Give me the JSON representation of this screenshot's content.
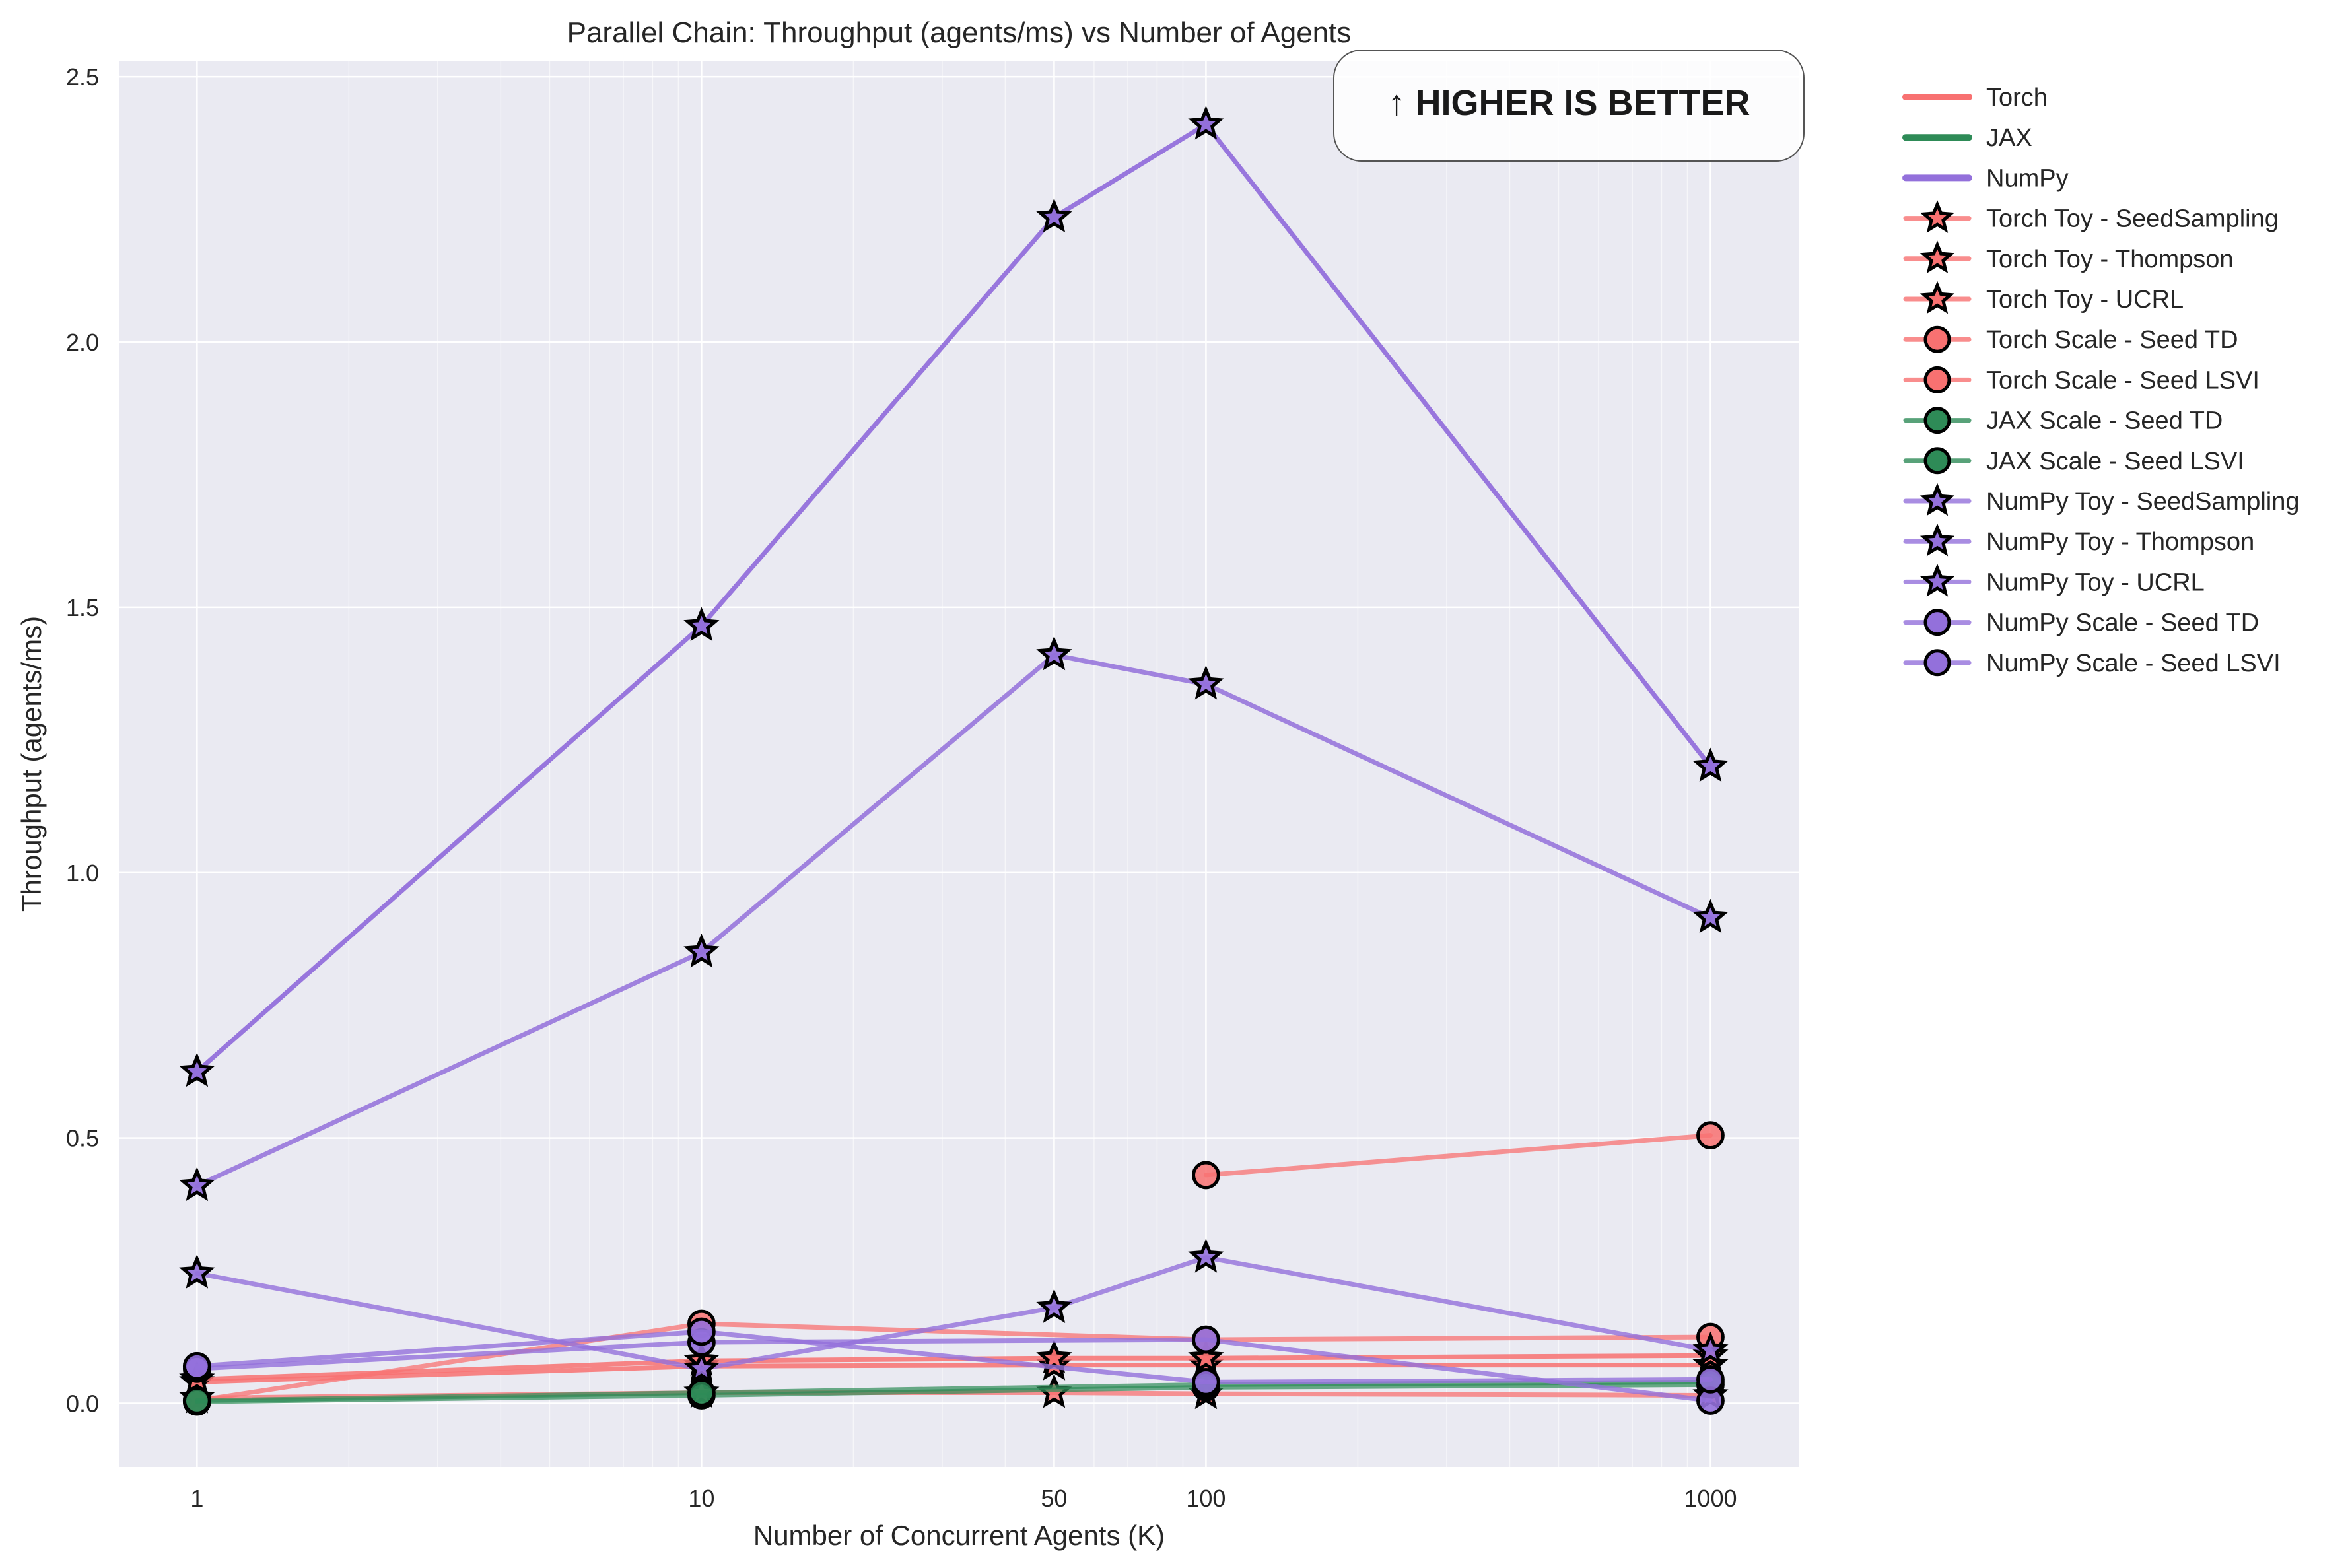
{
  "chart_data": {
    "type": "line",
    "title": "Parallel Chain: Throughput (agents/ms) vs Number of Agents",
    "xlabel": "Number of Concurrent Agents (K)",
    "ylabel": "Throughput (agents/ms)",
    "x_scale": "log",
    "xlim": [
      0.7,
      1500
    ],
    "ylim": [
      -0.12,
      2.53
    ],
    "x_ticks": [
      1,
      10,
      50,
      100,
      1000
    ],
    "x_tick_labels": [
      "1",
      "10",
      "50",
      "100",
      "1000"
    ],
    "y_ticks": [
      0.0,
      0.5,
      1.0,
      1.5,
      2.0,
      2.5
    ],
    "y_tick_labels": [
      "0.0",
      "0.5",
      "1.0",
      "1.5",
      "2.0",
      "2.5"
    ],
    "grid": true,
    "legend_position": "outside right",
    "annotation": "↑ HIGHER IS BETTER",
    "colors": {
      "torch": "#f87171",
      "jax": "#2e8b57",
      "numpy": "#9370db",
      "background": "#eaeaf2",
      "grid": "#ffffff"
    },
    "legend": [
      {
        "label": "Torch",
        "color": "#f87171",
        "marker": "none"
      },
      {
        "label": "JAX",
        "color": "#2e8b57",
        "marker": "none"
      },
      {
        "label": "NumPy",
        "color": "#9370db",
        "marker": "none"
      },
      {
        "label": "Torch Toy - SeedSampling",
        "color": "#f87171",
        "marker": "star"
      },
      {
        "label": "Torch Toy - Thompson",
        "color": "#f87171",
        "marker": "star"
      },
      {
        "label": "Torch Toy - UCRL",
        "color": "#f87171",
        "marker": "star"
      },
      {
        "label": "Torch Scale - Seed TD",
        "color": "#f87171",
        "marker": "circle"
      },
      {
        "label": "Torch Scale - Seed LSVI",
        "color": "#f87171",
        "marker": "circle"
      },
      {
        "label": "JAX Scale - Seed TD",
        "color": "#2e8b57",
        "marker": "circle"
      },
      {
        "label": "JAX Scale - Seed LSVI",
        "color": "#2e8b57",
        "marker": "circle"
      },
      {
        "label": "NumPy Toy - SeedSampling",
        "color": "#9370db",
        "marker": "star"
      },
      {
        "label": "NumPy Toy - Thompson",
        "color": "#9370db",
        "marker": "star"
      },
      {
        "label": "NumPy Toy - UCRL",
        "color": "#9370db",
        "marker": "star"
      },
      {
        "label": "NumPy Scale - Seed TD",
        "color": "#9370db",
        "marker": "circle"
      },
      {
        "label": "NumPy Scale - Seed LSVI",
        "color": "#9370db",
        "marker": "circle"
      }
    ],
    "series": [
      {
        "name": "Torch Toy - SeedSampling",
        "color": "#f87171",
        "marker": "star",
        "alpha": 0.75,
        "x": [
          1,
          10,
          50,
          100,
          1000
        ],
        "y": [
          0.01,
          0.02,
          0.02,
          0.018,
          0.015
        ]
      },
      {
        "name": "Torch Toy - Thompson",
        "color": "#f87171",
        "marker": "star",
        "alpha": 0.85,
        "x": [
          1,
          10,
          50,
          100,
          1000
        ],
        "y": [
          0.04,
          0.07,
          0.072,
          0.072,
          0.072
        ]
      },
      {
        "name": "Torch Toy - UCRL",
        "color": "#f87171",
        "marker": "star",
        "alpha": 0.85,
        "x": [
          1,
          10,
          50,
          100,
          1000
        ],
        "y": [
          0.045,
          0.08,
          0.085,
          0.085,
          0.09
        ]
      },
      {
        "name": "Torch Scale - Seed TD",
        "color": "#f87171",
        "marker": "circle",
        "alpha": 0.75,
        "x": [
          100,
          1000
        ],
        "y": [
          0.43,
          0.505
        ]
      },
      {
        "name": "Torch Scale - Seed LSVI",
        "color": "#f87171",
        "marker": "circle",
        "alpha": 0.75,
        "x": [
          1,
          10,
          100,
          1000
        ],
        "y": [
          0.005,
          0.15,
          0.12,
          0.125
        ]
      },
      {
        "name": "JAX Scale - Seed TD",
        "color": "#2e8b57",
        "marker": "circle",
        "alpha": 0.7,
        "x": [
          1,
          10,
          100,
          1000
        ],
        "y": [
          0.003,
          0.015,
          0.03,
          0.035
        ]
      },
      {
        "name": "JAX Scale - Seed LSVI",
        "color": "#2e8b57",
        "marker": "circle",
        "alpha": 0.7,
        "x": [
          1,
          10,
          100,
          1000
        ],
        "y": [
          0.005,
          0.02,
          0.035,
          0.04
        ]
      },
      {
        "name": "NumPy Toy - SeedSampling",
        "color": "#9370db",
        "marker": "star",
        "alpha": 0.8,
        "x": [
          1,
          10,
          50,
          100,
          1000
        ],
        "y": [
          0.245,
          0.065,
          0.18,
          0.275,
          0.1
        ]
      },
      {
        "name": "NumPy Toy - Thompson",
        "color": "#9370db",
        "marker": "star",
        "alpha": 0.85,
        "x": [
          1,
          10,
          50,
          100,
          1000
        ],
        "y": [
          0.41,
          0.85,
          1.41,
          1.355,
          0.915
        ]
      },
      {
        "name": "NumPy Toy - UCRL",
        "color": "#9370db",
        "marker": "star",
        "alpha": 0.95,
        "x": [
          1,
          10,
          50,
          100,
          1000
        ],
        "y": [
          0.625,
          1.465,
          2.235,
          2.41,
          1.2
        ]
      },
      {
        "name": "NumPy Scale - Seed TD",
        "color": "#9370db",
        "marker": "circle",
        "alpha": 0.8,
        "x": [
          1,
          10,
          100,
          1000
        ],
        "y": [
          0.065,
          0.115,
          0.12,
          0.005
        ]
      },
      {
        "name": "NumPy Scale - Seed LSVI",
        "color": "#9370db",
        "marker": "circle",
        "alpha": 0.8,
        "x": [
          1,
          10,
          100,
          1000
        ],
        "y": [
          0.07,
          0.135,
          0.04,
          0.045
        ]
      }
    ]
  }
}
